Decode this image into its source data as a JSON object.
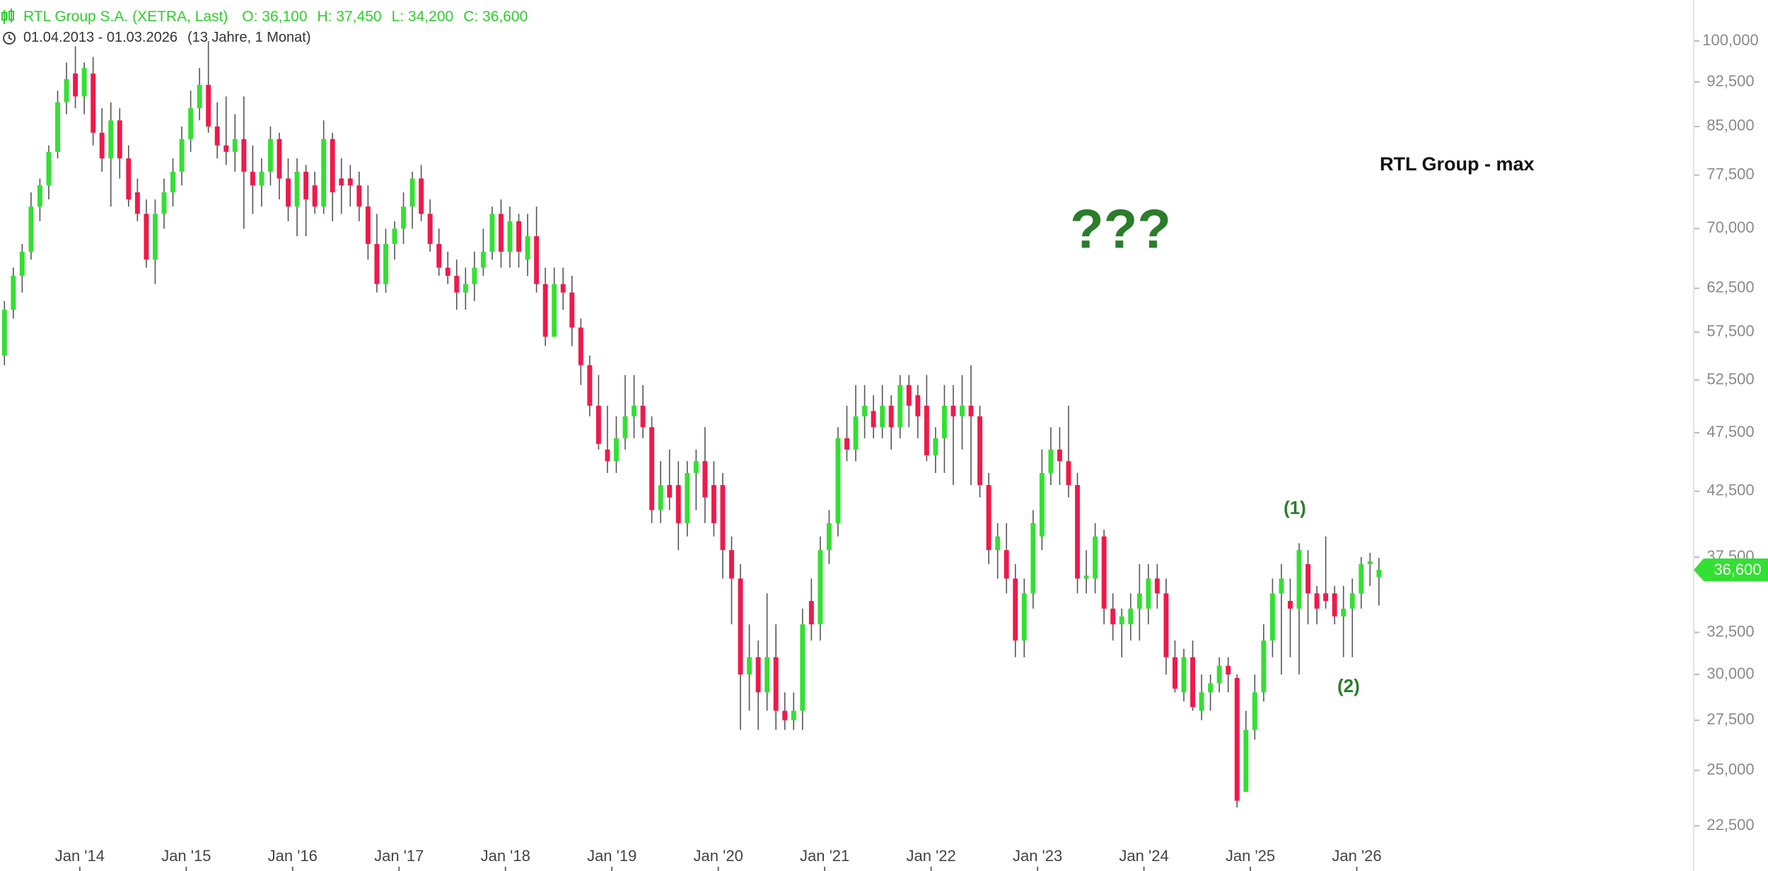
{
  "chart_data": {
    "type": "candlestick",
    "name": "RTL Group S.A. (XETRA, Last)",
    "header_items": [
      "O: 36,100",
      "H: 37,450",
      "L: 34,200",
      "C: 36,600"
    ],
    "date_range": "01.04.2013 - 01.03.2026",
    "duration": "(13 Jahre, 1 Monat)",
    "annotations": [
      "RTL Group - max",
      "???",
      "(1)",
      "(2)"
    ],
    "log_scale": true,
    "up_color": "#33e033",
    "down_color": "#f0194b",
    "wick_color": "#555555",
    "last_price": {
      "value": 36.6,
      "label": "36,600"
    },
    "xlim": [
      "2013-04",
      "2029-03"
    ],
    "xticks": [
      {
        "value": "2014-01",
        "label": "Jan '14"
      },
      {
        "value": "2015-01",
        "label": "Jan '15"
      },
      {
        "value": "2016-01",
        "label": "Jan '16"
      },
      {
        "value": "2017-01",
        "label": "Jan '17"
      },
      {
        "value": "2018-01",
        "label": "Jan '18"
      },
      {
        "value": "2019-01",
        "label": "Jan '19"
      },
      {
        "value": "2020-01",
        "label": "Jan '20"
      },
      {
        "value": "2021-01",
        "label": "Jan '21"
      },
      {
        "value": "2022-01",
        "label": "Jan '22"
      },
      {
        "value": "2023-01",
        "label": "Jan '23"
      },
      {
        "value": "2024-01",
        "label": "Jan '24"
      },
      {
        "value": "2025-01",
        "label": "Jan '25"
      },
      {
        "value": "2026-01",
        "label": "Jan '26"
      }
    ],
    "ylim": [
      20.65,
      108.1
    ],
    "yticks": [
      {
        "value": 22.5,
        "label": "22,500"
      },
      {
        "value": 25,
        "label": "25,000"
      },
      {
        "value": 27.5,
        "label": "27,500"
      },
      {
        "value": 30,
        "label": "30,000"
      },
      {
        "value": 32.5,
        "label": "32,500"
      },
      {
        "value": 37.5,
        "label": "37,500"
      },
      {
        "value": 42.5,
        "label": "42,500"
      },
      {
        "value": 47.5,
        "label": "47,500"
      },
      {
        "value": 52.5,
        "label": "52,500"
      },
      {
        "value": 57.5,
        "label": "57,500"
      },
      {
        "value": 62.5,
        "label": "62,500"
      },
      {
        "value": 70,
        "label": "70,000"
      },
      {
        "value": 77.5,
        "label": "77,500"
      },
      {
        "value": 85,
        "label": "85,000"
      },
      {
        "value": 92.5,
        "label": "92,500"
      },
      {
        "value": 100,
        "label": "100,000"
      }
    ],
    "x": [
      "2013-04",
      "2013-05",
      "2013-06",
      "2013-07",
      "2013-08",
      "2013-09",
      "2013-10",
      "2013-11",
      "2013-12",
      "2014-01",
      "2014-02",
      "2014-03",
      "2014-04",
      "2014-05",
      "2014-06",
      "2014-07",
      "2014-08",
      "2014-09",
      "2014-10",
      "2014-11",
      "2014-12",
      "2015-01",
      "2015-02",
      "2015-03",
      "2015-04",
      "2015-05",
      "2015-06",
      "2015-07",
      "2015-08",
      "2015-09",
      "2015-10",
      "2015-11",
      "2015-12",
      "2016-01",
      "2016-02",
      "2016-03",
      "2016-04",
      "2016-05",
      "2016-06",
      "2016-07",
      "2016-08",
      "2016-09",
      "2016-10",
      "2016-11",
      "2016-12",
      "2017-01",
      "2017-02",
      "2017-03",
      "2017-04",
      "2017-05",
      "2017-06",
      "2017-07",
      "2017-08",
      "2017-09",
      "2017-10",
      "2017-11",
      "2017-12",
      "2018-01",
      "2018-02",
      "2018-03",
      "2018-04",
      "2018-05",
      "2018-06",
      "2018-07",
      "2018-08",
      "2018-09",
      "2018-10",
      "2018-11",
      "2018-12",
      "2019-01",
      "2019-02",
      "2019-03",
      "2019-04",
      "2019-05",
      "2019-06",
      "2019-07",
      "2019-08",
      "2019-09",
      "2019-10",
      "2019-11",
      "2019-12",
      "2020-01",
      "2020-02",
      "2020-03",
      "2020-04",
      "2020-05",
      "2020-06",
      "2020-07",
      "2020-08",
      "2020-09",
      "2020-10",
      "2020-11",
      "2020-12",
      "2021-01",
      "2021-02",
      "2021-03",
      "2021-04",
      "2021-05",
      "2021-06",
      "2021-07",
      "2021-08",
      "2021-09",
      "2021-10",
      "2021-11",
      "2021-12",
      "2022-01",
      "2022-02",
      "2022-03",
      "2022-04",
      "2022-05",
      "2022-06",
      "2022-07",
      "2022-08",
      "2022-09",
      "2022-10",
      "2022-11",
      "2022-12",
      "2023-01",
      "2023-02",
      "2023-03",
      "2023-04",
      "2023-05",
      "2023-06",
      "2023-07",
      "2023-08",
      "2023-09",
      "2023-10",
      "2023-11",
      "2023-12",
      "2024-01",
      "2024-02",
      "2024-03",
      "2024-04",
      "2024-05",
      "2024-06",
      "2024-07",
      "2024-08",
      "2024-09",
      "2024-10",
      "2024-11",
      "2024-12",
      "2025-01",
      "2025-02",
      "2025-03",
      "2025-04",
      "2025-05",
      "2025-06",
      "2025-07",
      "2025-08",
      "2025-09",
      "2025-10",
      "2025-11",
      "2025-12",
      "2026-01",
      "2026-02",
      "2026-03"
    ],
    "open": [
      55,
      60,
      64,
      67,
      73,
      76,
      81,
      89,
      94,
      90,
      94,
      84,
      80,
      86,
      80,
      75,
      72,
      66,
      72,
      75,
      78,
      83,
      88,
      92,
      85,
      82,
      81,
      83,
      78,
      76,
      78,
      83,
      77,
      73,
      78,
      76,
      73,
      83,
      77,
      77,
      76,
      73,
      68,
      63,
      68,
      70,
      73,
      77,
      72,
      68,
      65,
      64,
      62,
      63,
      65,
      67,
      72,
      67,
      71,
      66,
      69,
      63,
      57,
      63,
      62,
      58,
      54,
      50,
      46,
      45,
      47,
      49,
      50,
      48,
      41,
      43,
      43,
      40,
      44,
      45,
      43,
      43,
      38,
      36,
      30,
      31,
      29,
      31,
      28,
      27.5,
      28,
      34.5,
      33,
      38,
      40,
      47,
      46,
      49,
      49.5,
      48,
      50,
      48,
      52,
      51,
      50,
      45.5,
      47,
      50,
      49,
      50,
      49,
      43,
      38,
      38,
      36,
      32,
      35,
      39,
      44,
      46,
      45,
      43,
      36,
      36,
      39,
      34,
      33,
      33,
      34,
      34,
      36,
      35,
      31,
      29,
      31,
      28,
      29,
      29.5,
      30.5,
      29.8,
      24,
      27,
      29,
      32,
      35,
      34.5,
      34,
      37,
      35,
      35,
      35,
      33.5,
      34,
      35,
      37,
      36.1
    ],
    "high": [
      61,
      65,
      68,
      75,
      77,
      82,
      91,
      96,
      99,
      96,
      97,
      88,
      89,
      88,
      82,
      77,
      74,
      74,
      77,
      80,
      85,
      91,
      95,
      100,
      89,
      90,
      87,
      90,
      82,
      80,
      85,
      84,
      80,
      80,
      79,
      78,
      86,
      84,
      80,
      79,
      78,
      76,
      72,
      70,
      71,
      75,
      78,
      79,
      74,
      70,
      67,
      66,
      65,
      67,
      70,
      73,
      74,
      73,
      72,
      72,
      73,
      65,
      65,
      65,
      64,
      59,
      55,
      53,
      50,
      49,
      53,
      53,
      52,
      49,
      45,
      46,
      45,
      45,
      46,
      48,
      45,
      44,
      39,
      37,
      33,
      32,
      35,
      33,
      29,
      29,
      34,
      36,
      39,
      41,
      48,
      50,
      52,
      52,
      51,
      52,
      51,
      53,
      53,
      52,
      53,
      48,
      52,
      52,
      53,
      54,
      50,
      44,
      40,
      40,
      37,
      36,
      41,
      46,
      48,
      48,
      50,
      44,
      38,
      40,
      39.5,
      35,
      34,
      35,
      37,
      37,
      37,
      36,
      32,
      31.5,
      32,
      30,
      30,
      31,
      31,
      30,
      28,
      30,
      33,
      36,
      37,
      36,
      38.5,
      38,
      35.5,
      39,
      35.5,
      35.5,
      36,
      37.5,
      37.8,
      37.45
    ],
    "low": [
      54,
      59,
      62,
      66,
      71,
      74,
      80,
      87,
      88,
      87,
      82,
      78,
      73,
      77,
      73,
      71,
      65,
      63,
      70,
      73,
      76,
      81,
      86,
      84,
      80,
      79,
      78,
      70,
      72,
      73,
      76,
      74,
      71,
      69,
      69,
      72,
      72,
      71,
      72,
      73,
      71,
      66,
      62,
      62,
      66,
      68,
      70,
      71,
      67,
      64,
      63,
      60,
      60,
      61,
      64,
      66,
      65,
      65,
      65,
      64,
      62,
      56,
      57,
      60,
      56,
      52,
      49,
      46,
      44,
      44,
      46,
      47,
      47,
      40,
      40,
      41,
      38,
      39,
      41,
      40,
      39,
      36,
      33,
      27,
      28,
      27,
      28,
      27,
      27,
      27,
      27,
      32,
      32,
      37,
      39,
      45,
      45,
      47,
      47,
      47,
      46,
      47,
      48,
      47,
      45,
      44,
      44,
      43,
      46,
      43,
      42,
      37,
      36,
      35,
      31,
      31,
      34,
      38,
      43,
      43,
      42,
      35,
      35,
      35,
      33,
      32,
      31,
      32,
      32,
      33,
      34,
      30,
      29,
      28.5,
      28,
      27.5,
      28,
      29,
      29,
      23.3,
      24,
      26.5,
      28.5,
      31,
      30,
      31,
      30,
      33,
      33,
      34,
      33,
      31,
      31,
      34,
      35.5,
      34.2
    ],
    "close": [
      60,
      64,
      67,
      73,
      76,
      81,
      89,
      93,
      90,
      95,
      84,
      80,
      86,
      80,
      74,
      72,
      66,
      72,
      75,
      78,
      83,
      88,
      92,
      85,
      82,
      81,
      83,
      78,
      76,
      78,
      83,
      77,
      73,
      78,
      74,
      73,
      83,
      75,
      76,
      76,
      73,
      68,
      63,
      68,
      70,
      73,
      77,
      72,
      68,
      65,
      64,
      62,
      63,
      65,
      67,
      72,
      67,
      71,
      67,
      69,
      63,
      57,
      63,
      62,
      58,
      54,
      50,
      46.5,
      45,
      47,
      49,
      50,
      48,
      41,
      43,
      42,
      40,
      44,
      45,
      42,
      40,
      38,
      36,
      30,
      31,
      29,
      31,
      28,
      27.5,
      28,
      33,
      33,
      38,
      40,
      47,
      46,
      49,
      50,
      48,
      50,
      48,
      52,
      50,
      49,
      45.5,
      47,
      50,
      49,
      50,
      49,
      43,
      38,
      39,
      36,
      32,
      35,
      40,
      44,
      46,
      45,
      43,
      36,
      36.2,
      39,
      34,
      33,
      33.5,
      34,
      35,
      36,
      35,
      31,
      29.2,
      31,
      28.2,
      29,
      29.5,
      30.5,
      30,
      23.6,
      27,
      29,
      32,
      35,
      36,
      34,
      38,
      35,
      34,
      34.5,
      33.5,
      34,
      35,
      37,
      37.2,
      36.6
    ]
  }
}
